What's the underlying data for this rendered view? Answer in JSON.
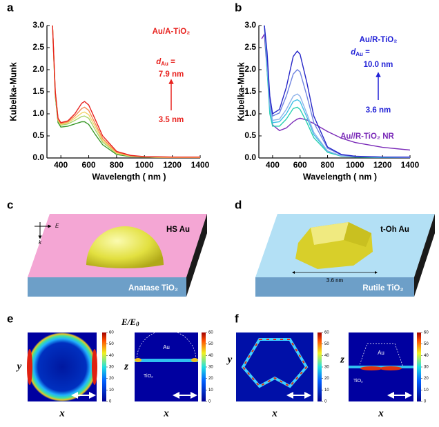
{
  "chart_data": [
    {
      "type": "line",
      "panel_label": "a",
      "x_label": "Wavelength ( nm )",
      "y_label": "Kubelka-Munk",
      "xlim": [
        300,
        1400
      ],
      "ylim": [
        0,
        3
      ],
      "xticks": [
        400,
        600,
        800,
        1000,
        1200,
        1400
      ],
      "yticks": [
        {
          "value": 0,
          "label": "0.0"
        },
        0.5,
        {
          "value": 1,
          "label": "1.0"
        },
        1.5,
        {
          "value": 2,
          "label": "2.0"
        },
        2.5,
        {
          "value": 3,
          "label": "3.0"
        }
      ],
      "x": [
        340,
        360,
        380,
        400,
        450,
        500,
        550,
        570,
        600,
        650,
        700,
        800,
        900,
        1000,
        1200,
        1400
      ],
      "series": [
        {
          "color": "#3c9a2a",
          "values": [
            3.0,
            1.4,
            0.8,
            0.7,
            0.72,
            0.77,
            0.82,
            0.82,
            0.76,
            0.52,
            0.3,
            0.08,
            0.03,
            0.02,
            0.01,
            0.01
          ]
        },
        {
          "color": "#a8d46a",
          "values": [
            3.0,
            1.45,
            0.84,
            0.74,
            0.77,
            0.85,
            0.94,
            0.95,
            0.9,
            0.62,
            0.36,
            0.1,
            0.04,
            0.02,
            0.01,
            0.01
          ]
        },
        {
          "color": "#f2d46a",
          "values": [
            3.0,
            1.45,
            0.86,
            0.76,
            0.8,
            0.9,
            1.02,
            1.04,
            0.98,
            0.69,
            0.4,
            0.11,
            0.04,
            0.02,
            0.01,
            0.01
          ]
        },
        {
          "color": "#f5894f",
          "values": [
            3.0,
            1.5,
            0.88,
            0.78,
            0.82,
            0.95,
            1.12,
            1.15,
            1.08,
            0.76,
            0.44,
            0.13,
            0.05,
            0.03,
            0.02,
            0.02
          ]
        },
        {
          "color": "#e8231f",
          "values": [
            3.0,
            1.5,
            0.9,
            0.8,
            0.84,
            1.0,
            1.24,
            1.28,
            1.2,
            0.85,
            0.5,
            0.15,
            0.06,
            0.03,
            0.02,
            0.02
          ]
        }
      ],
      "annotation_color": "#e8231f",
      "sample_label": "Au/A-TiO₂",
      "size_symbol": "d",
      "size_subscript": "Au",
      "size_equals": " =",
      "size_max": "7.9 nm",
      "size_min": "3.5 nm"
    },
    {
      "type": "line",
      "panel_label": "b",
      "x_label": "Wavelength ( nm )",
      "y_label": "Kubelka-Munk",
      "xlim": [
        300,
        1400
      ],
      "ylim": [
        0,
        3
      ],
      "xticks": [
        400,
        600,
        800,
        1000,
        1200,
        1400
      ],
      "yticks": [
        {
          "value": 0,
          "label": "0.0"
        },
        0.5,
        {
          "value": 1,
          "label": "1.0"
        },
        1.5,
        {
          "value": 2,
          "label": "2.0"
        },
        2.5,
        {
          "value": 3,
          "label": "3.0"
        }
      ],
      "x": [
        320,
        340,
        360,
        380,
        400,
        450,
        500,
        550,
        580,
        600,
        650,
        700,
        800,
        900,
        1000,
        1200,
        1400
      ],
      "series": [
        {
          "color": "#7a2ab8",
          "values": [
            2.7,
            2.8,
            2.0,
            1.2,
            0.75,
            0.62,
            0.68,
            0.82,
            0.88,
            0.9,
            0.86,
            0.78,
            0.6,
            0.45,
            0.35,
            0.24,
            0.18
          ]
        },
        {
          "color": "#28d0b0",
          "values": [
            null,
            3.0,
            2.0,
            1.0,
            0.72,
            0.72,
            0.88,
            1.12,
            1.15,
            1.1,
            0.8,
            0.46,
            0.13,
            0.04,
            0.02,
            0.01,
            0.01
          ]
        },
        {
          "color": "#3fc0e6",
          "values": [
            null,
            3.0,
            2.1,
            1.1,
            0.8,
            0.82,
            1.0,
            1.28,
            1.32,
            1.28,
            0.92,
            0.53,
            0.15,
            0.05,
            0.03,
            0.02,
            0.01
          ]
        },
        {
          "color": "#8fb3ea",
          "values": [
            null,
            3.0,
            2.2,
            1.2,
            0.85,
            0.88,
            1.1,
            1.4,
            1.45,
            1.4,
            1.0,
            0.58,
            0.16,
            0.05,
            0.03,
            0.02,
            0.01
          ]
        },
        {
          "color": "#6f83e0",
          "values": [
            null,
            3.0,
            2.3,
            1.3,
            0.95,
            1.02,
            1.4,
            1.9,
            2.0,
            1.95,
            1.4,
            0.8,
            0.22,
            0.07,
            0.03,
            0.02,
            0.02
          ]
        },
        {
          "color": "#2626c8",
          "values": [
            null,
            3.0,
            2.4,
            1.4,
            1.0,
            1.1,
            1.6,
            2.3,
            2.42,
            2.35,
            1.7,
            0.95,
            0.25,
            0.08,
            0.04,
            0.02,
            0.02
          ]
        }
      ],
      "annotation_color": "#1f1fd6",
      "sample_label": "Au/R-TiO₂",
      "size_symbol": "d",
      "size_subscript": "Au",
      "size_equals": " =",
      "size_max": "10.0 nm",
      "size_min": "3.6 nm",
      "nr_label": "Au//R-TiO₂ NR",
      "nr_color": "#7a2ab8"
    }
  ],
  "panels": {
    "c": {
      "label": "c",
      "particle": "HS Au",
      "substrate": "Anatase TiO₂",
      "axis_e": "E",
      "axis_k": "k"
    },
    "d": {
      "label": "d",
      "particle": "t-Oh Au",
      "substrate": "Rutile TiO₂",
      "size": "3.6 nm"
    },
    "e": {
      "label": "e",
      "colorbar_title": "E/E",
      "colorbar_title_sub": "0",
      "map1": {
        "y_label": "y",
        "x_label": "x"
      },
      "map2": {
        "y_label": "z",
        "x_label": "x",
        "particle": "Au",
        "substrate": "TiO₂"
      }
    },
    "f": {
      "label": "f",
      "map1": {
        "y_label": "y",
        "x_label": "x"
      },
      "map2": {
        "y_label": "z",
        "x_label": "x",
        "particle": "Au",
        "substrate": "TiO₂"
      }
    },
    "colorbar_ticks": [
      0,
      10,
      20,
      30,
      40,
      50,
      60
    ]
  }
}
